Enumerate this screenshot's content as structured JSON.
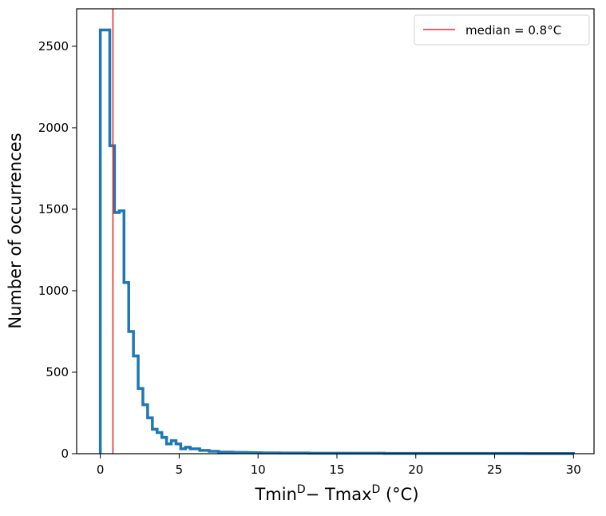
{
  "chart_data": {
    "type": "histogram",
    "title": "",
    "xlabel": {
      "parts": [
        "Tmin",
        "D",
        "− Tmax",
        "D",
        " (°C)"
      ]
    },
    "ylabel": "Number of occurrences",
    "xlim": [
      -1.5,
      31.3
    ],
    "ylim": [
      0,
      2730
    ],
    "xticks": [
      "0",
      "5",
      "10",
      "15",
      "20",
      "25",
      "30"
    ],
    "xtick_values": [
      0,
      5,
      10,
      15,
      20,
      25,
      30
    ],
    "yticks": [
      "0",
      "500",
      "1000",
      "1500",
      "2000",
      "2500"
    ],
    "ytick_values": [
      0,
      500,
      1000,
      1500,
      2000,
      2500
    ],
    "bin_width": 0.3,
    "bin_start": 0,
    "counts": [
      2600,
      2600,
      1890,
      1480,
      1490,
      1050,
      750,
      600,
      400,
      300,
      220,
      150,
      130,
      100,
      60,
      80,
      60,
      30,
      40,
      30,
      30,
      20,
      20,
      15,
      15,
      10,
      10,
      10,
      8,
      8,
      8,
      7,
      6,
      6,
      5,
      5,
      5,
      5,
      4,
      4,
      4,
      4,
      4,
      4,
      3,
      3,
      3,
      3,
      3,
      3,
      3,
      3,
      3,
      3,
      3,
      3,
      3,
      3,
      3,
      3,
      2,
      2,
      2,
      2,
      2,
      2,
      2,
      2,
      2,
      2,
      2,
      2,
      2,
      2,
      2,
      2,
      2,
      2,
      2,
      2,
      2,
      2,
      2,
      2,
      2,
      2,
      2,
      2,
      2,
      2,
      1,
      1,
      1,
      1,
      1,
      1,
      1,
      1,
      1,
      1
    ],
    "series_color": "#1f77b4",
    "median": {
      "value": 0.8,
      "label": "median = 0.8°C",
      "color": "#e8302b"
    },
    "legend_position": "top-right",
    "grid": false
  }
}
